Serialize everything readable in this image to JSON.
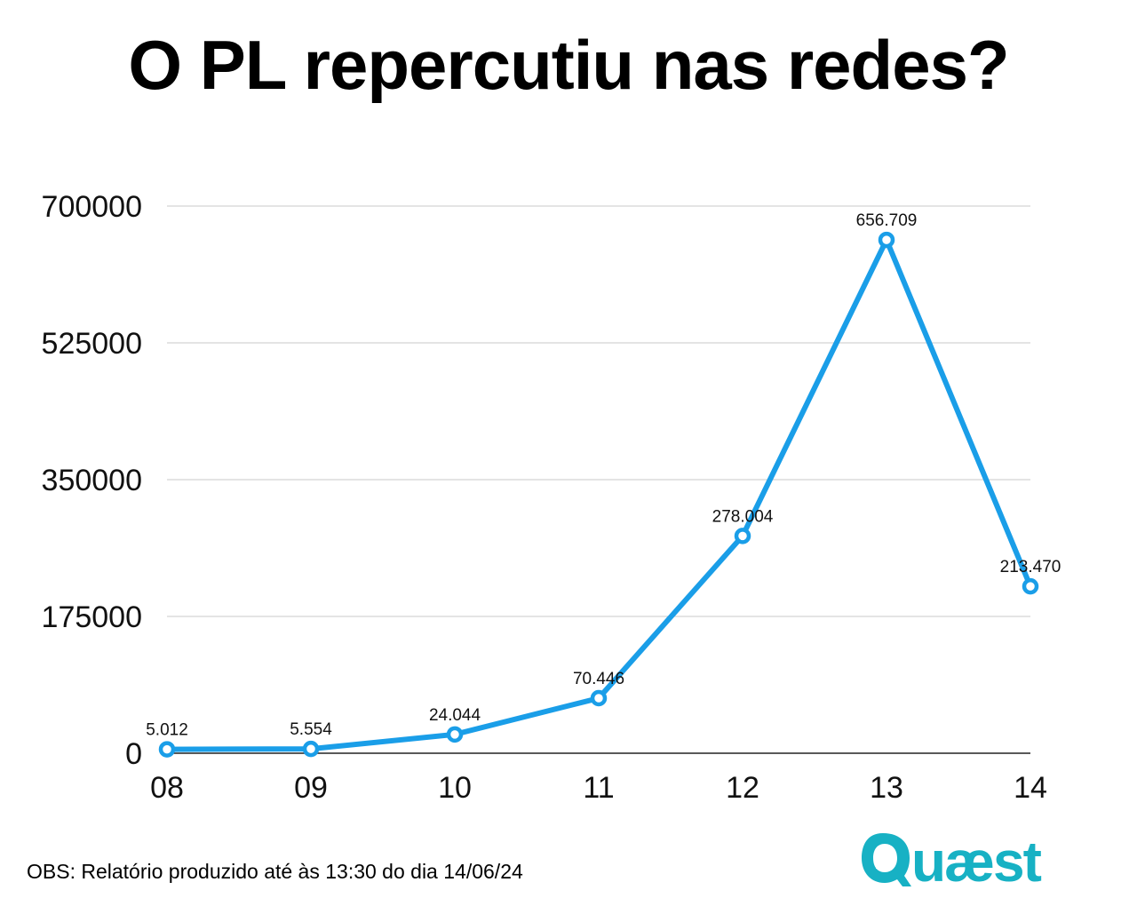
{
  "title": "O PL repercutiu nas redes?",
  "footnote": "OBS: Relatório produzido até às 13:30 do dia 14/06/24",
  "logo": {
    "name": "Quaest",
    "color": "#17b1c4"
  },
  "chart_data": {
    "type": "line",
    "title": "O PL repercutiu nas redes?",
    "categories": [
      "08",
      "09",
      "10",
      "11",
      "12",
      "13",
      "14"
    ],
    "values": [
      5012,
      5554,
      24044,
      70446,
      278004,
      656709,
      213470
    ],
    "data_labels": [
      "5.012",
      "5.554",
      "24.044",
      "70.446",
      "278.004",
      "656.709",
      "213.470"
    ],
    "y_ticks": [
      0,
      175000,
      350000,
      525000,
      700000
    ],
    "y_tick_labels": [
      "0",
      "175000",
      "350000",
      "525000",
      "700000"
    ],
    "ylim": [
      0,
      700000
    ],
    "grid": true,
    "legend": "none",
    "line_color": "#1a9ee8",
    "xlabel": "",
    "ylabel": ""
  }
}
